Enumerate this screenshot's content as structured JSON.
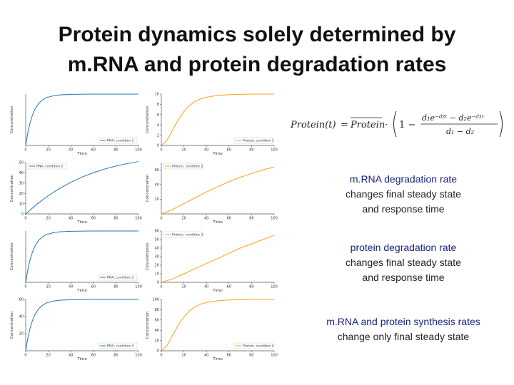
{
  "title": {
    "line1": "Protein dynamics solely determined by",
    "line2": "m.RNA and protein degradation rates"
  },
  "formula": {
    "lhs": "Protein(t)",
    "equals": "=",
    "steady_state": "Protein",
    "numerator": "d₁e⁻ᵈ²ᵗ − d₂e⁻ᵈ¹ᵗ",
    "denominator": "d₁ − d₂",
    "one_minus": "1 −"
  },
  "notes": [
    {
      "head": "m.RNA degradation rate",
      "line1": "changes final steady state",
      "line2": "and response time"
    },
    {
      "head": "protein degradation rate",
      "line1": "changes final steady state",
      "line2": "and response time"
    },
    {
      "head": "m.RNA and protein synthesis rates",
      "line1": "change only final steady state",
      "line2": ""
    }
  ],
  "colors": {
    "mrna": "#1f77b4",
    "protein": "#ff9f1c"
  },
  "chart_data": [
    {
      "type": "line",
      "xlabel": "Time",
      "ylabel": "Concentration",
      "xlim": [
        0,
        100
      ],
      "ylim": [
        0,
        10
      ],
      "xticks": [
        0,
        20,
        40,
        60,
        80,
        100
      ],
      "yticks": [],
      "legend_loc": "lower-right",
      "color": "#1f77b4",
      "series": [
        {
          "name": "RNA, condition 1",
          "x": [
            0,
            2,
            4,
            6,
            8,
            10,
            12,
            14,
            16,
            18,
            20,
            25,
            30,
            40,
            60,
            80,
            100
          ],
          "y": [
            0,
            2.6,
            4.5,
            5.9,
            7.0,
            7.7,
            8.3,
            8.7,
            9.0,
            9.3,
            9.4,
            9.7,
            9.85,
            9.95,
            10,
            10,
            10
          ]
        }
      ]
    },
    {
      "type": "line",
      "xlabel": "Time",
      "ylabel": "Concentration",
      "xlim": [
        0,
        100
      ],
      "ylim": [
        0,
        10
      ],
      "xticks": [
        0,
        20,
        40,
        60,
        80,
        100
      ],
      "yticks": [
        0,
        2,
        4,
        6,
        8,
        10
      ],
      "legend_loc": "lower-right",
      "color": "#ff9f1c",
      "series": [
        {
          "name": "Protein, condition 1",
          "x": [
            0,
            5,
            10,
            15,
            20,
            25,
            30,
            35,
            40,
            50,
            60,
            80,
            100
          ],
          "y": [
            0,
            1.0,
            3.0,
            5.0,
            6.6,
            7.8,
            8.6,
            9.1,
            9.4,
            9.75,
            9.9,
            10,
            10
          ]
        }
      ]
    },
    {
      "type": "line",
      "xlabel": "Time",
      "ylabel": "Concentration",
      "xlim": [
        0,
        100
      ],
      "ylim": [
        0,
        50
      ],
      "xticks": [
        0,
        20,
        40,
        60,
        80,
        100
      ],
      "yticks": [
        0,
        10,
        20,
        30,
        40,
        50
      ],
      "legend_loc": "top-left",
      "color": "#1f77b4",
      "series": [
        {
          "name": "RNA, condition 2",
          "x": [
            0,
            10,
            20,
            30,
            40,
            50,
            60,
            70,
            80,
            90,
            100
          ],
          "y": [
            0,
            9.5,
            17.8,
            24.8,
            30.8,
            35.9,
            40.1,
            43.7,
            46.6,
            49.0,
            51.0
          ]
        }
      ]
    },
    {
      "type": "line",
      "xlabel": "Time",
      "ylabel": "Concentration",
      "xlim": [
        0,
        100
      ],
      "ylim": [
        0,
        70
      ],
      "xticks": [
        0,
        20,
        40,
        60,
        80,
        100
      ],
      "yticks": [
        20,
        40,
        60
      ],
      "legend_loc": "top-left",
      "color": "#ff9f1c",
      "series": [
        {
          "name": "Protein, condition 2",
          "x": [
            0,
            10,
            20,
            30,
            40,
            50,
            60,
            70,
            80,
            90,
            100
          ],
          "y": [
            0,
            6,
            14,
            22,
            30,
            37,
            44,
            50,
            55,
            60,
            64
          ]
        }
      ]
    },
    {
      "type": "line",
      "xlabel": "Time",
      "ylabel": "Concentration",
      "xlim": [
        0,
        100
      ],
      "ylim": [
        0,
        10
      ],
      "xticks": [
        0,
        20,
        40,
        60,
        80,
        100
      ],
      "yticks": [],
      "legend_loc": "lower-right",
      "color": "#1f77b4",
      "series": [
        {
          "name": "RNA, condition 3",
          "x": [
            0,
            2,
            4,
            6,
            8,
            10,
            12,
            14,
            16,
            18,
            20,
            25,
            30,
            40,
            60,
            80,
            100
          ],
          "y": [
            0,
            2.6,
            4.5,
            5.9,
            7.0,
            7.7,
            8.3,
            8.7,
            9.0,
            9.3,
            9.4,
            9.7,
            9.85,
            9.95,
            10,
            10,
            10
          ]
        }
      ]
    },
    {
      "type": "line",
      "xlabel": "Time",
      "ylabel": "Concentration",
      "xlim": [
        0,
        100
      ],
      "ylim": [
        0,
        60
      ],
      "xticks": [
        0,
        20,
        40,
        60,
        80,
        100
      ],
      "yticks": [
        0,
        10,
        20,
        30,
        40,
        50,
        60
      ],
      "legend_loc": "top-left",
      "color": "#ff9f1c",
      "series": [
        {
          "name": "Protein, condition 3",
          "x": [
            0,
            10,
            20,
            30,
            40,
            50,
            60,
            70,
            80,
            90,
            100
          ],
          "y": [
            0,
            4,
            10,
            16,
            22,
            28,
            34,
            40,
            45,
            50,
            55
          ]
        }
      ]
    },
    {
      "type": "line",
      "xlabel": "Time",
      "ylabel": "Concentration",
      "xlim": [
        0,
        100
      ],
      "ylim": [
        0,
        60
      ],
      "xticks": [
        0,
        20,
        40,
        60,
        80,
        100
      ],
      "yticks": [
        20,
        40,
        60
      ],
      "legend_loc": "lower-right",
      "color": "#1f77b4",
      "series": [
        {
          "name": "RNA, condition 4",
          "x": [
            0,
            2,
            4,
            6,
            8,
            10,
            12,
            14,
            16,
            18,
            20,
            25,
            30,
            40,
            60,
            80,
            100
          ],
          "y": [
            0,
            15.6,
            27,
            35.4,
            42,
            46.2,
            49.8,
            52.2,
            54,
            55.8,
            56.4,
            58.2,
            59.1,
            59.7,
            60,
            60,
            60
          ]
        }
      ]
    },
    {
      "type": "line",
      "xlabel": "Time",
      "ylabel": "Concentration",
      "xlim": [
        0,
        100
      ],
      "ylim": [
        0,
        100
      ],
      "xticks": [
        0,
        20,
        40,
        60,
        80,
        100
      ],
      "yticks": [
        0,
        20,
        40,
        60,
        80,
        100
      ],
      "legend_loc": "lower-right",
      "color": "#ff9f1c",
      "series": [
        {
          "name": "Protein, condition 4",
          "x": [
            0,
            5,
            10,
            15,
            20,
            25,
            30,
            35,
            40,
            50,
            60,
            80,
            100
          ],
          "y": [
            0,
            10,
            30,
            50,
            66,
            78,
            86,
            91,
            94,
            97.5,
            99,
            100,
            100
          ]
        }
      ]
    }
  ]
}
